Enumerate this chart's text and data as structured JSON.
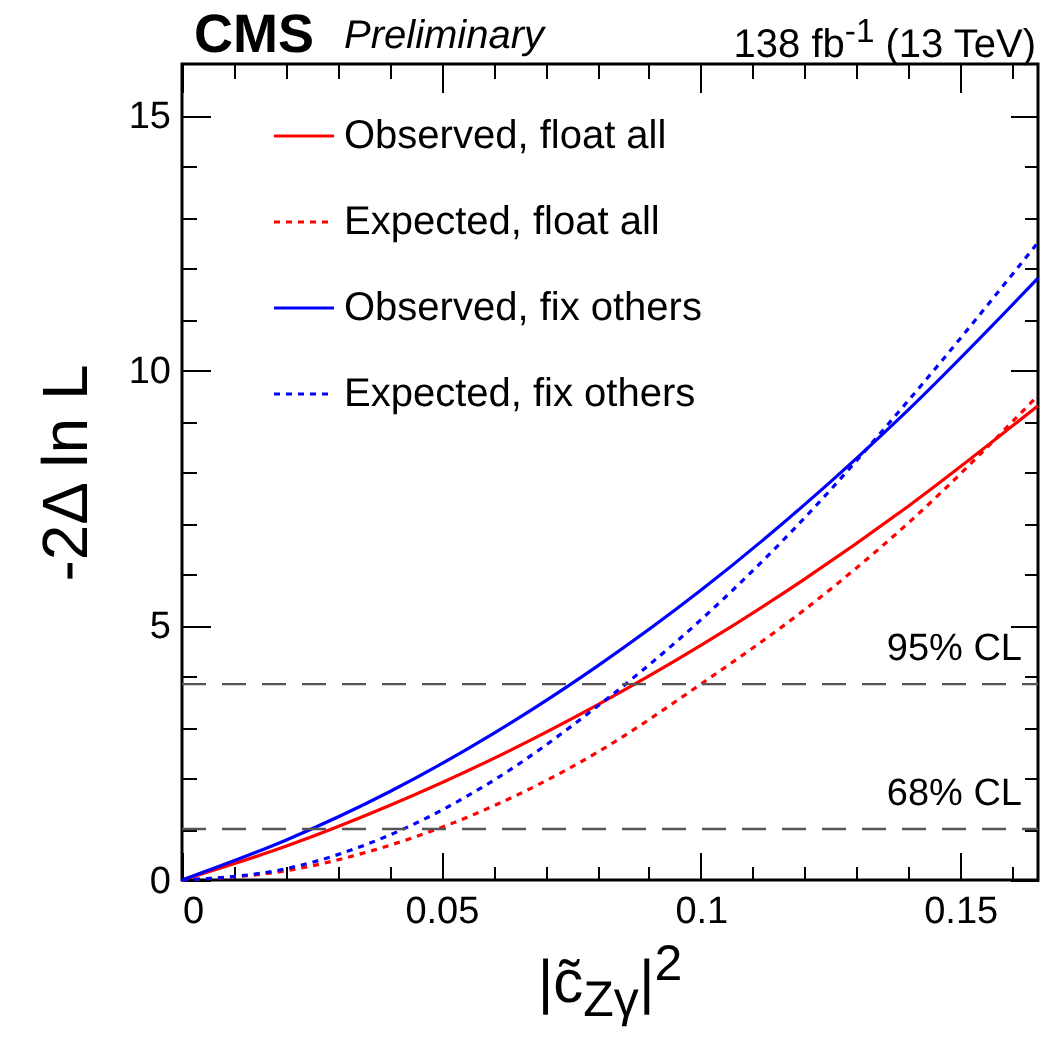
{
  "chart_data": {
    "type": "line",
    "title": "CMS",
    "subtitle": "Preliminary",
    "annotations": [
      "138 fb$^{-1}$ (13 TeV)"
    ],
    "xlabel": "|c̃$_{Zγ}$|$^{2}$",
    "ylabel": "-2Δ ln L",
    "xlim": [
      0,
      0.165
    ],
    "ylim": [
      0,
      16
    ],
    "xticks": [
      0,
      {
        "value": 0.01,
        "label": null
      },
      {
        "value": 0.02,
        "label": null
      },
      {
        "value": 0.03,
        "label": null
      },
      {
        "value": 0.04,
        "label": null
      },
      0.05,
      {
        "value": 0.06,
        "label": null
      },
      {
        "value": 0.07,
        "label": null
      },
      {
        "value": 0.08,
        "label": null
      },
      {
        "value": 0.09,
        "label": null
      },
      0.1,
      {
        "value": 0.11,
        "label": null
      },
      {
        "value": 0.12,
        "label": null
      },
      {
        "value": 0.13,
        "label": null
      },
      {
        "value": 0.14,
        "label": null
      },
      0.15,
      {
        "value": 0.16,
        "label": null
      }
    ],
    "yticks": [
      0,
      {
        "value": 1,
        "label": null
      },
      {
        "value": 2,
        "label": null
      },
      {
        "value": 3,
        "label": null
      },
      {
        "value": 4,
        "label": null
      },
      5,
      {
        "value": 6,
        "label": null
      },
      {
        "value": 7,
        "label": null
      },
      {
        "value": 8,
        "label": null
      },
      {
        "value": 9,
        "label": null
      },
      10,
      {
        "value": 11,
        "label": null
      },
      {
        "value": 12,
        "label": null
      },
      {
        "value": 13,
        "label": null
      },
      {
        "value": 14,
        "label": null
      },
      15
    ],
    "legend": "top left",
    "grid": false,
    "marker": "none",
    "series": [
      {
        "name": "Observed, float all",
        "color": "#ff0000",
        "line_style": "solid",
        "x": [
          0,
          0.02,
          0.04,
          0.06,
          0.08,
          0.1,
          0.12,
          0.14,
          0.165
        ],
        "values": [
          0,
          0.66,
          1.46,
          2.38,
          3.43,
          4.6,
          5.9,
          7.33,
          9.3
        ]
      },
      {
        "name": "Expected, float all",
        "color": "#ff0000",
        "line_style": "dotted",
        "x": [
          0,
          0.02,
          0.04,
          0.06,
          0.08,
          0.1,
          0.12,
          0.14,
          0.165
        ],
        "values": [
          0,
          0.18,
          0.68,
          1.45,
          2.5,
          3.84,
          5.3,
          7.0,
          9.5
        ]
      },
      {
        "name": "Observed, fix others",
        "color": "#0000ff",
        "line_style": "solid",
        "x": [
          0,
          0.02,
          0.04,
          0.06,
          0.08,
          0.1,
          0.12,
          0.14,
          0.165
        ],
        "values": [
          0,
          0.78,
          1.73,
          2.87,
          4.19,
          5.68,
          7.36,
          9.22,
          11.8
        ]
      },
      {
        "name": "Expected, fix others",
        "color": "#0000ff",
        "line_style": "dotted",
        "x": [
          0,
          0.02,
          0.04,
          0.06,
          0.08,
          0.1,
          0.12,
          0.14,
          0.165
        ],
        "values": [
          0,
          0.22,
          0.88,
          1.95,
          3.4,
          5.1,
          7.1,
          9.4,
          12.5
        ]
      }
    ],
    "ref_lines": [
      {
        "axis": "y",
        "value": 1,
        "label": "68% CL",
        "color": "#555555",
        "line_style": "dashed"
      },
      {
        "axis": "y",
        "value": 3.84,
        "label": "95% CL",
        "color": "#555555",
        "line_style": "dashed"
      }
    ]
  }
}
